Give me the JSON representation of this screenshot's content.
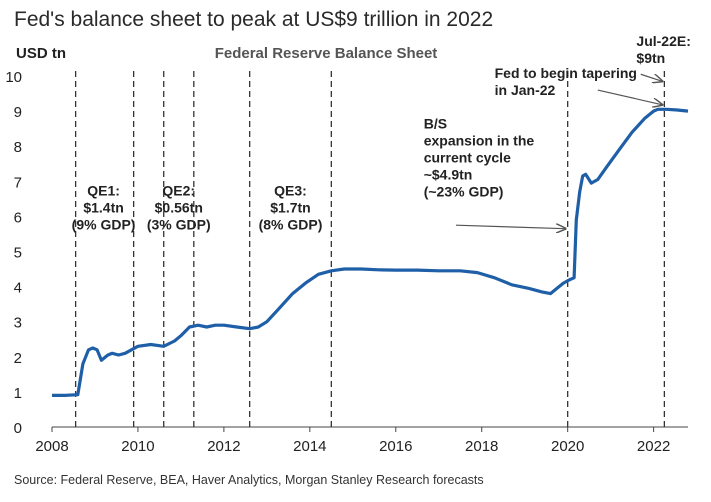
{
  "headline": "Fed's balance sheet to peak at US$9 trillion in 2022",
  "source": "Source: Federal Reserve, BEA, Haver Analytics, Morgan Stanley Research forecasts",
  "colors": {
    "line": "#1f5fa8",
    "text": "#222222",
    "divider": "#444444"
  },
  "chart_data": {
    "type": "line",
    "title": "Federal Reserve Balance Sheet",
    "ylabel": "USD tn",
    "xlabel": "",
    "xlim": [
      2008,
      2022.8
    ],
    "ylim": [
      0,
      10
    ],
    "x_ticks": [
      "2008",
      "2010",
      "2012",
      "2014",
      "2016",
      "2018",
      "2020",
      "2022"
    ],
    "y_ticks": [
      "0",
      "1",
      "2",
      "3",
      "4",
      "5",
      "6",
      "7",
      "8",
      "9",
      "10"
    ],
    "grid": false,
    "legend": "none",
    "series": [
      {
        "x": [
          2008.0,
          2008.3,
          2008.6,
          2008.72,
          2008.85,
          2008.95,
          2009.05,
          2009.15,
          2009.3,
          2009.4,
          2009.55,
          2009.7,
          2009.85,
          2010.0,
          2010.3,
          2010.6,
          2010.85,
          2011.0,
          2011.2,
          2011.4,
          2011.6,
          2011.8,
          2012.0,
          2012.3,
          2012.6,
          2012.8,
          2013.0,
          2013.3,
          2013.6,
          2013.9,
          2014.2,
          2014.5,
          2014.8,
          2015.2,
          2015.6,
          2016.0,
          2016.5,
          2017.0,
          2017.5,
          2017.9,
          2018.3,
          2018.7,
          2019.1,
          2019.4,
          2019.6,
          2019.75,
          2019.9,
          2020.05,
          2020.15,
          2020.2,
          2020.28,
          2020.35,
          2020.42,
          2020.55,
          2020.7,
          2020.9,
          2021.2,
          2021.5,
          2021.8,
          2022.0,
          2022.1,
          2022.3,
          2022.55,
          2022.8
        ],
        "y": [
          0.9,
          0.9,
          0.92,
          1.8,
          2.2,
          2.25,
          2.2,
          1.9,
          2.05,
          2.1,
          2.05,
          2.1,
          2.2,
          2.3,
          2.35,
          2.3,
          2.45,
          2.6,
          2.85,
          2.9,
          2.85,
          2.9,
          2.9,
          2.85,
          2.8,
          2.85,
          3.0,
          3.4,
          3.8,
          4.1,
          4.35,
          4.45,
          4.5,
          4.5,
          4.48,
          4.47,
          4.47,
          4.45,
          4.45,
          4.4,
          4.25,
          4.05,
          3.95,
          3.85,
          3.8,
          3.95,
          4.1,
          4.2,
          4.25,
          5.9,
          6.7,
          7.15,
          7.2,
          6.95,
          7.05,
          7.4,
          7.9,
          8.4,
          8.8,
          9.0,
          9.05,
          9.05,
          9.03,
          9.0
        ]
      }
    ],
    "vlines": [
      2008.55,
      2009.9,
      2010.6,
      2011.3,
      2012.6,
      2014.5,
      2020.0,
      2022.25
    ],
    "annotations": [
      {
        "lines": [
          "QE1:",
          "$1.4tn",
          "(9% GDP)"
        ],
        "x": 2009.2,
        "y": 6.6
      },
      {
        "lines": [
          "QE2:",
          "$0.56tn",
          "(3% GDP)"
        ],
        "x": 2010.95,
        "y": 6.6
      },
      {
        "lines": [
          "QE3:",
          "$1.7tn",
          "(8% GDP)"
        ],
        "x": 2013.55,
        "y": 6.6
      },
      {
        "lines": [
          "B/S",
          "expansion in the",
          "current cycle",
          "~$4.9tn",
          "(~23% GDP)"
        ],
        "x": 2016.65,
        "y": 8.5
      },
      {
        "lines": [
          "Fed to begin tapering",
          "in Jan-22"
        ],
        "x": 2018.3,
        "y": 9.95
      },
      {
        "lines": [
          "Jul-22E:",
          "$9tn"
        ],
        "x": 2021.6,
        "y": 10.85
      }
    ]
  }
}
